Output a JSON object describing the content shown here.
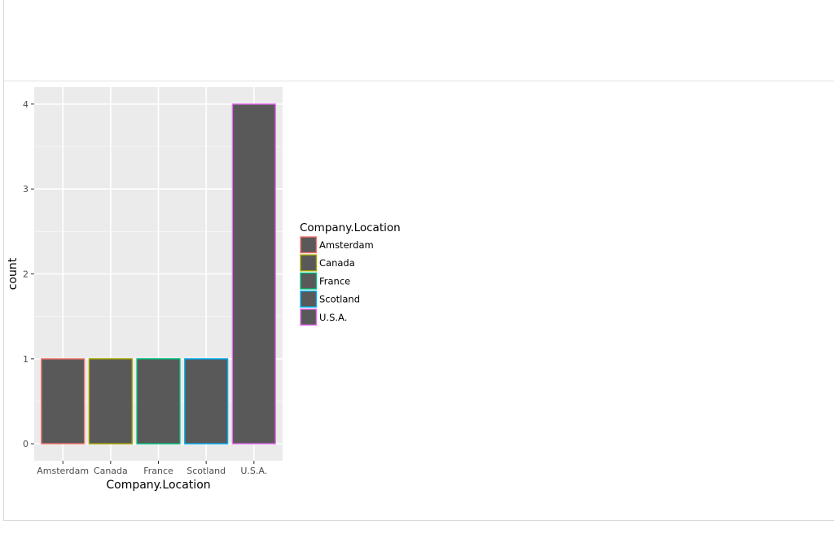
{
  "chart_data": {
    "type": "bar",
    "categories": [
      "Amsterdam",
      "Canada",
      "France",
      "Scotland",
      "U.S.A."
    ],
    "values": [
      1,
      1,
      1,
      1,
      4
    ],
    "xlabel": "Company.Location",
    "ylabel": "count",
    "ylim": [
      -0.2,
      4.2
    ],
    "yticks": [
      0,
      1,
      2,
      3,
      4
    ],
    "grid": true,
    "bar_fill": "#595959",
    "panel_background": "#ebebeb",
    "outline_colors": [
      "#F8766D",
      "#A3A500",
      "#00BF7D",
      "#00B0F6",
      "#E76BF3"
    ],
    "legend": {
      "title": "Company.Location",
      "entries": [
        "Amsterdam",
        "Canada",
        "France",
        "Scotland",
        "U.S.A."
      ],
      "placement": "right"
    }
  }
}
